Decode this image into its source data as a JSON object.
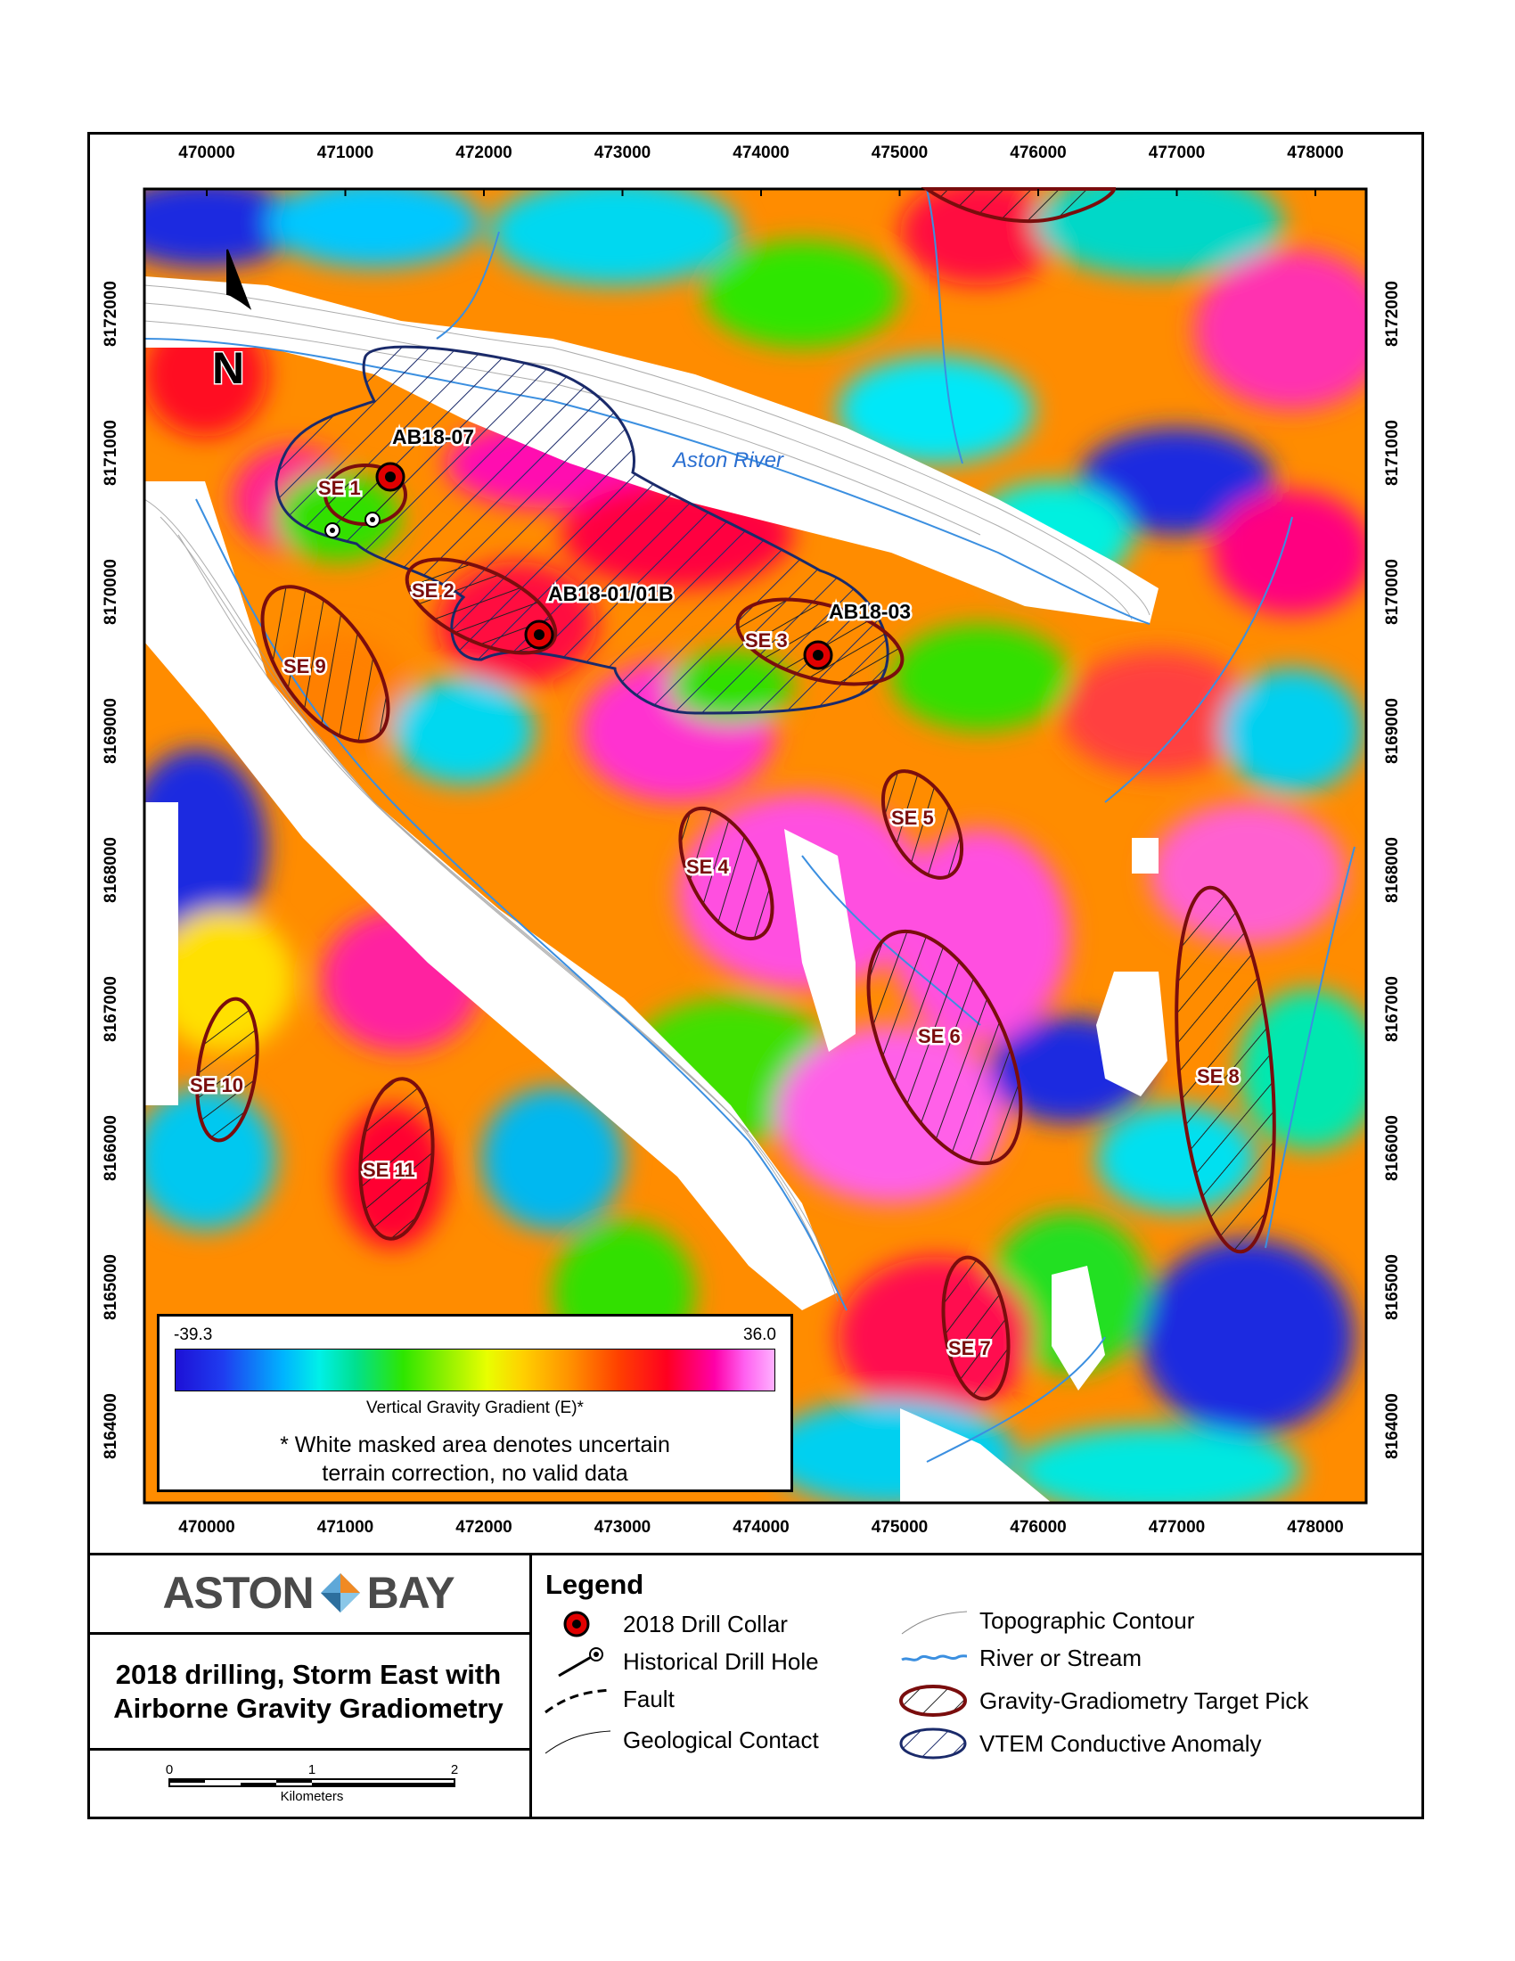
{
  "map": {
    "x_ticks": [
      "470000",
      "471000",
      "472000",
      "473000",
      "474000",
      "475000",
      "476000",
      "477000",
      "478000"
    ],
    "y_ticks": [
      "8172000",
      "8171000",
      "8170000",
      "8169000",
      "8168000",
      "8167000",
      "8166000",
      "8165000",
      "8164000"
    ],
    "north_label": "N",
    "river_label": "Aston River",
    "target_picks": [
      "SE 1",
      "SE 2",
      "SE 3",
      "SE 4",
      "SE 5",
      "SE 6",
      "SE 7",
      "SE 8",
      "SE 9",
      "SE 10",
      "SE 11"
    ],
    "drill_collars": [
      "AB18-07",
      "AB18-01/01B",
      "AB18-03"
    ]
  },
  "colorbar": {
    "min": "-39.3",
    "max": "36.0",
    "title": "Vertical Gravity Gradient (E)*",
    "note_line1": "* White masked area denotes uncertain",
    "note_line2": "terrain correction, no valid data"
  },
  "logo": {
    "left": "ASTON",
    "right": "BAY"
  },
  "title": {
    "line1": "2018 drilling, Storm East with",
    "line2": "Airborne Gravity Gradiometry"
  },
  "scalebar": {
    "ticks": [
      "0",
      "1",
      "2"
    ],
    "unit": "Kilometers"
  },
  "legend": {
    "title": "Legend",
    "items": [
      "2018 Drill Collar",
      "Historical Drill Hole",
      "Fault",
      "Geological Contact",
      "Topographic Contour",
      "River or Stream",
      "Gravity-Gradiometry Target Pick",
      "VTEM Conductive Anomaly"
    ]
  },
  "colors": {
    "target": "#7a0d0d",
    "vtem": "#1a2a6a",
    "river": "#3b8fe0"
  }
}
